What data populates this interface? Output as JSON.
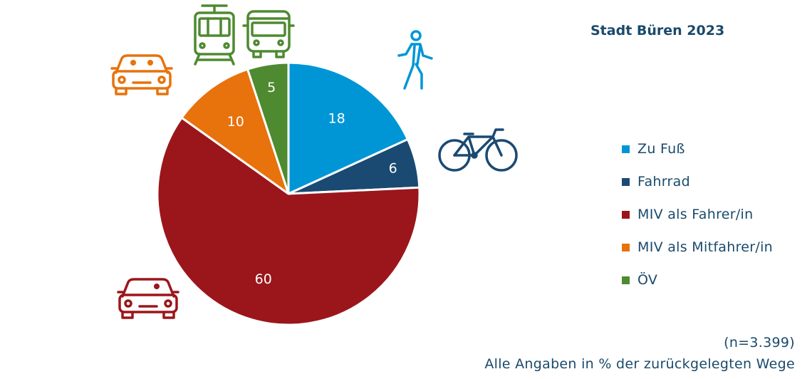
{
  "title": "Stadt Büren 2023",
  "chart_data": {
    "type": "pie",
    "categories": [
      "Zu Fuß",
      "Fahrrad",
      "MIV als Fahrer/in",
      "MIV als Mitfahrer/in",
      "ÖV"
    ],
    "values": [
      18,
      6,
      60,
      10,
      5
    ],
    "colors": [
      "#0096d6",
      "#1a4a72",
      "#9b161b",
      "#e8720c",
      "#4e8a30"
    ],
    "legend_position": "right"
  },
  "legend": {
    "items": [
      {
        "label": "Zu Fuß",
        "color": "#0096d6"
      },
      {
        "label": "Fahrrad",
        "color": "#1a4a72"
      },
      {
        "label": "MIV als Fahrer/in",
        "color": "#9b161b"
      },
      {
        "label": "MIV als Mitfahrer/in",
        "color": "#e8720c"
      },
      {
        "label": "ÖV",
        "color": "#4e8a30"
      }
    ]
  },
  "icons": [
    "pedestrian-icon",
    "bicycle-icon",
    "car-driver-icon",
    "car-passenger-icon",
    "tram-icon",
    "bus-icon"
  ],
  "note": {
    "sample": "(n=3.399)",
    "description": "Alle Angaben in % der zurückgelegten Wege"
  }
}
